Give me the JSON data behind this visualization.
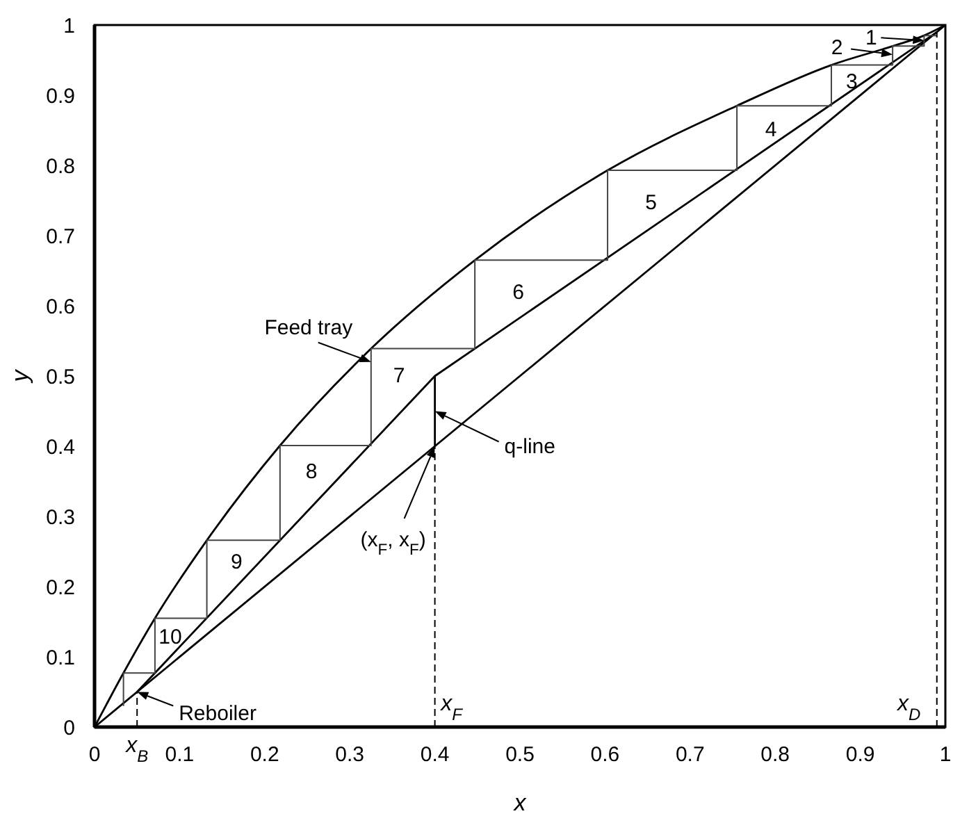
{
  "chart_data": {
    "type": "line",
    "xlabel": "x",
    "ylabel": "y",
    "xlim": [
      0,
      1
    ],
    "ylim": [
      0,
      1
    ],
    "xticks": [
      0,
      0.1,
      0.2,
      0.3,
      0.4,
      0.5,
      0.6,
      0.7,
      0.8,
      0.9,
      1
    ],
    "yticks": [
      0,
      0.1,
      0.2,
      0.3,
      0.4,
      0.5,
      0.6,
      0.7,
      0.8,
      0.9,
      1
    ],
    "marker": "none",
    "line_style": "solid",
    "series": [
      {
        "color": "#000000",
        "x": [
          0,
          0.034,
          0.071,
          0.132,
          0.218,
          0.325,
          0.447,
          0.603,
          0.755,
          0.866,
          0.938,
          0.975,
          1
        ],
        "values": [
          0,
          0.077,
          0.155,
          0.266,
          0.401,
          0.539,
          0.665,
          0.793,
          0.885,
          0.943,
          0.97,
          0.985,
          1
        ]
      },
      {
        "color": "#000000",
        "x": [
          0,
          1
        ],
        "values": [
          0,
          1
        ]
      },
      {
        "color": "#000000",
        "x": [
          0.05,
          0.4,
          0.99
        ],
        "values": [
          0.05,
          0.5,
          0.99
        ]
      },
      {
        "color": "#000000",
        "x": [
          0.4,
          0.4
        ],
        "values": [
          0.4,
          0.5
        ]
      },
      {
        "color": "#444444",
        "x": [
          0.99,
          0.975,
          0.975,
          0.938,
          0.938,
          0.866,
          0.866,
          0.755,
          0.755,
          0.603,
          0.603,
          0.447,
          0.447,
          0.325,
          0.325,
          0.218,
          0.218,
          0.132,
          0.132,
          0.071,
          0.071,
          0.034,
          0.034
        ],
        "values": [
          0.985,
          0.985,
          0.97,
          0.97,
          0.943,
          0.943,
          0.885,
          0.885,
          0.793,
          0.793,
          0.665,
          0.665,
          0.539,
          0.539,
          0.401,
          0.401,
          0.266,
          0.266,
          0.155,
          0.155,
          0.077,
          0.077,
          0.03
        ]
      }
    ],
    "ref_lines": [
      {
        "axis": "x",
        "value": 0.05,
        "label": "x$_{B}$",
        "line_style": "dashed"
      },
      {
        "axis": "x",
        "value": 0.4,
        "label": "x$_{F}$",
        "line_style": "dashed"
      },
      {
        "axis": "x",
        "value": 0.99,
        "label": "x$_{D}$",
        "line_style": "dashed"
      }
    ],
    "annotations": [
      {
        "text": "1",
        "x": 0.975,
        "y": 0.978
      },
      {
        "text": "2",
        "x": 0.938,
        "y": 0.958
      },
      "3",
      "4",
      "5",
      "6",
      "7",
      "8",
      "9",
      "10",
      {
        "text": "Feed tray",
        "x": 0.325,
        "y": 0.52
      },
      {
        "text": "q-line",
        "x": 0.4,
        "y": 0.45
      },
      {
        "text": "(x$_{F}$, x$_{F}$)",
        "x": 0.4,
        "y": 0.4
      },
      {
        "text": "Reboiler",
        "x": 0.05,
        "y": 0.05
      }
    ]
  }
}
